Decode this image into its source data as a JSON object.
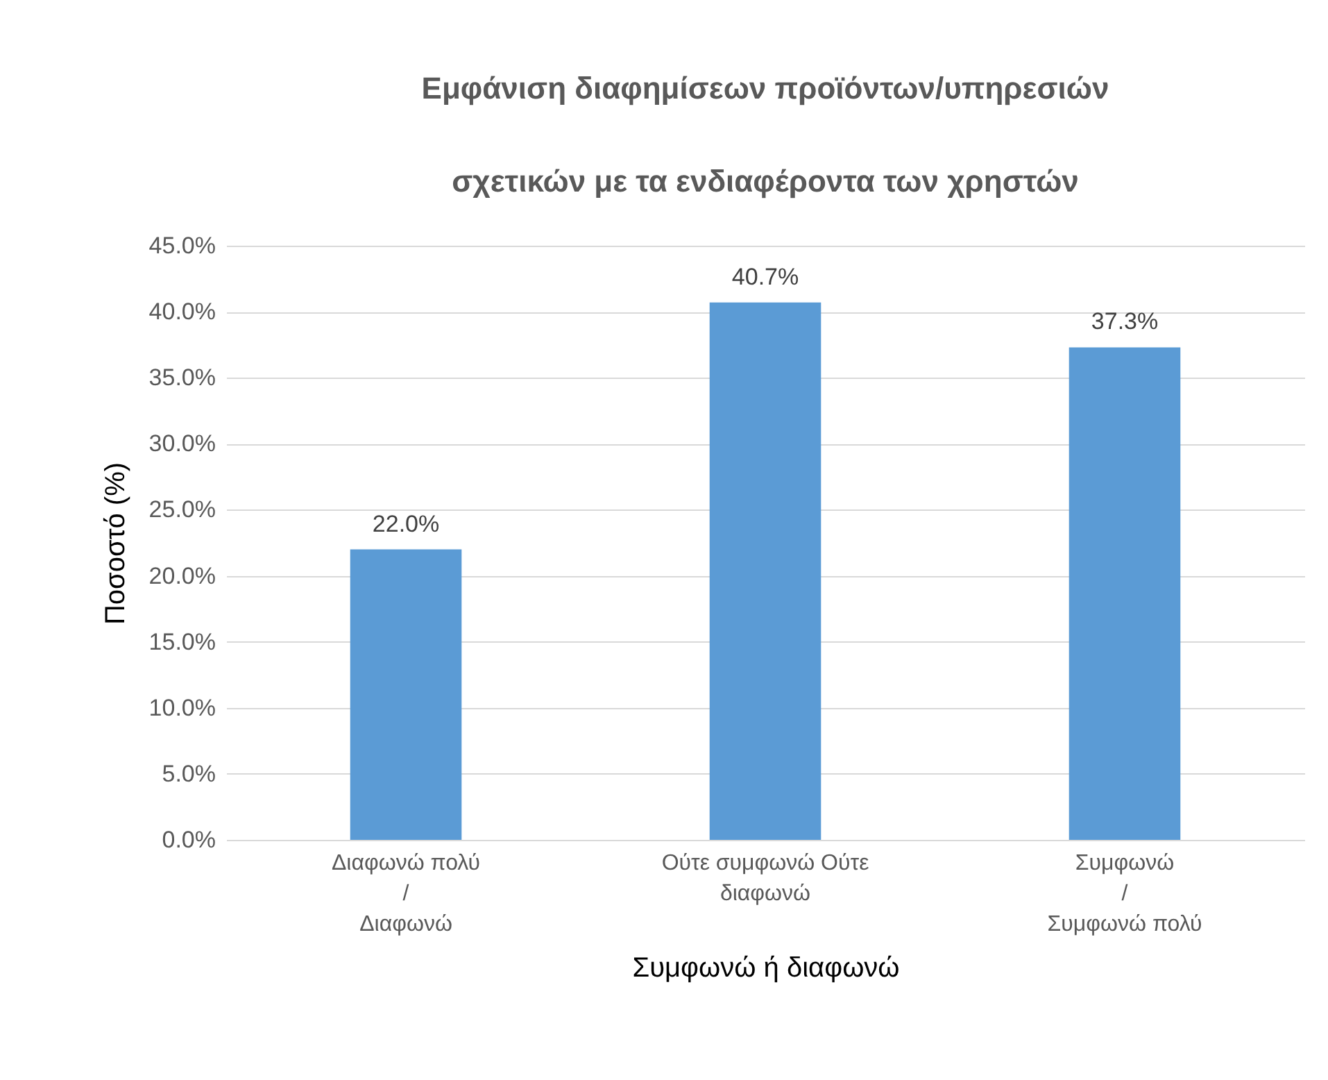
{
  "chart_data": {
    "type": "bar",
    "title": "Εμφάνιση διαφημίσεων προϊόντων/υπηρεσιών σχετικών με τα ενδιαφέροντα των χρηστών",
    "xlabel": "Συμφωνώ ή διαφωνώ",
    "ylabel": "Ποσοστό (%)",
    "categories": [
      "Διαφωνώ πολύ\n/\nΔιαφωνώ",
      "Ούτε συμφωνώ Ούτε\nδιαφωνώ",
      "Συμφωνώ\n/\nΣυμφωνώ πολύ"
    ],
    "values": [
      22.0,
      40.7,
      37.3
    ],
    "value_labels": [
      "22.0%",
      "40.7%",
      "37.3%"
    ],
    "color": "#5b9bd5",
    "ylim": [
      0,
      45
    ],
    "yticks": [
      {
        "value": 0,
        "label": "0.0%"
      },
      {
        "value": 5,
        "label": "5.0%"
      },
      {
        "value": 10,
        "label": "10.0%"
      },
      {
        "value": 15,
        "label": "15.0%"
      },
      {
        "value": 20,
        "label": "20.0%"
      },
      {
        "value": 25,
        "label": "25.0%"
      },
      {
        "value": 30,
        "label": "30.0%"
      },
      {
        "value": 35,
        "label": "35.0%"
      },
      {
        "value": 40,
        "label": "40.0%"
      },
      {
        "value": 45,
        "label": "45.0%"
      }
    ],
    "grid": "y"
  }
}
